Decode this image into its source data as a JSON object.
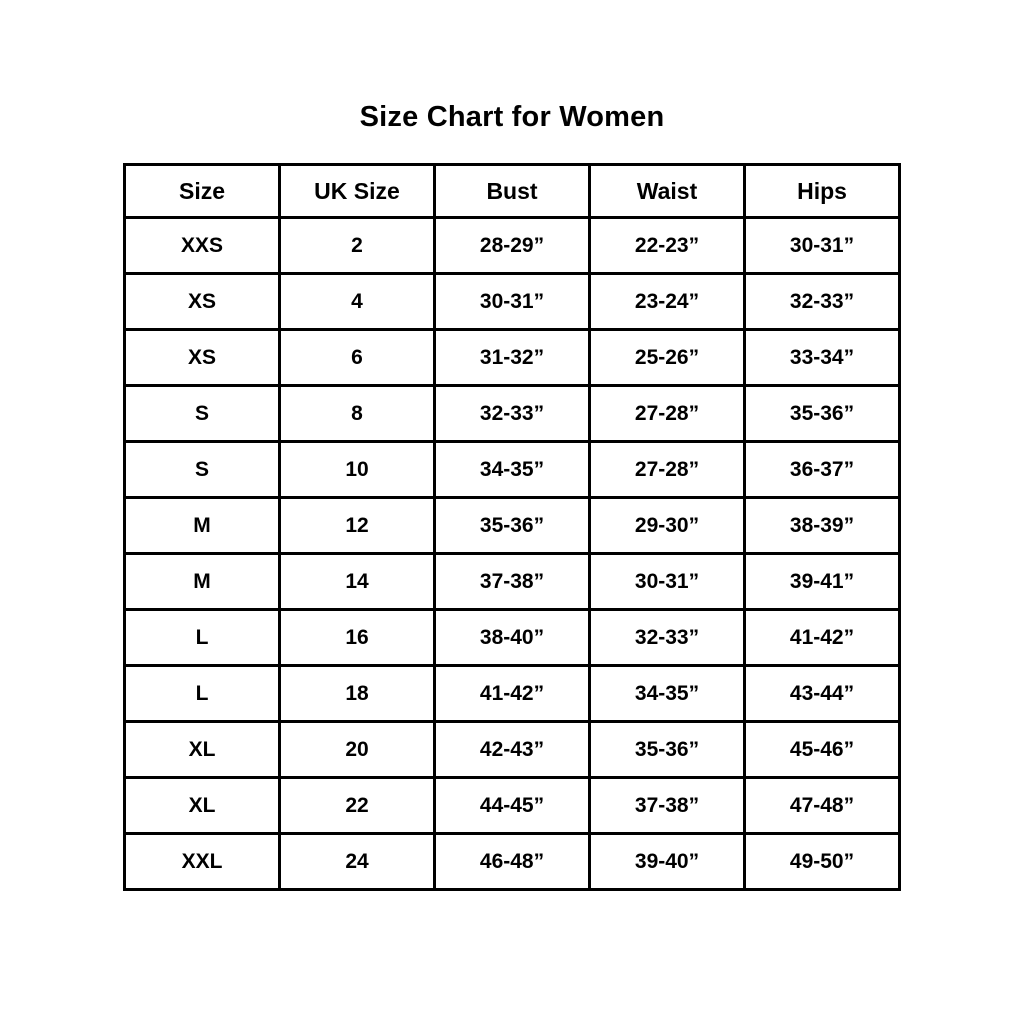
{
  "page": {
    "background_color": "#ffffff",
    "text_color": "#000000",
    "border_color": "#000000"
  },
  "chart_data": {
    "type": "table",
    "title": "Size Chart for Women",
    "columns": [
      "Size",
      "UK Size",
      "Bust",
      "Waist",
      "Hips"
    ],
    "rows": [
      [
        "XXS",
        "2",
        "28-29”",
        "22-23”",
        "30-31”"
      ],
      [
        "XS",
        "4",
        "30-31”",
        "23-24”",
        "32-33”"
      ],
      [
        "XS",
        "6",
        "31-32”",
        "25-26”",
        "33-34”"
      ],
      [
        "S",
        "8",
        "32-33”",
        "27-28”",
        "35-36”"
      ],
      [
        "S",
        "10",
        "34-35”",
        "27-28”",
        "36-37”"
      ],
      [
        "M",
        "12",
        "35-36”",
        "29-30”",
        "38-39”"
      ],
      [
        "M",
        "14",
        "37-38”",
        "30-31”",
        "39-41”"
      ],
      [
        "L",
        "16",
        "38-40”",
        "32-33”",
        "41-42”"
      ],
      [
        "L",
        "18",
        "41-42”",
        "34-35”",
        "43-44”"
      ],
      [
        "XL",
        "20",
        "42-43”",
        "35-36”",
        "45-46”"
      ],
      [
        "XL",
        "22",
        "44-45”",
        "37-38”",
        "47-48”"
      ],
      [
        "XXL",
        "24",
        "46-48”",
        "39-40”",
        "49-50”"
      ]
    ]
  }
}
